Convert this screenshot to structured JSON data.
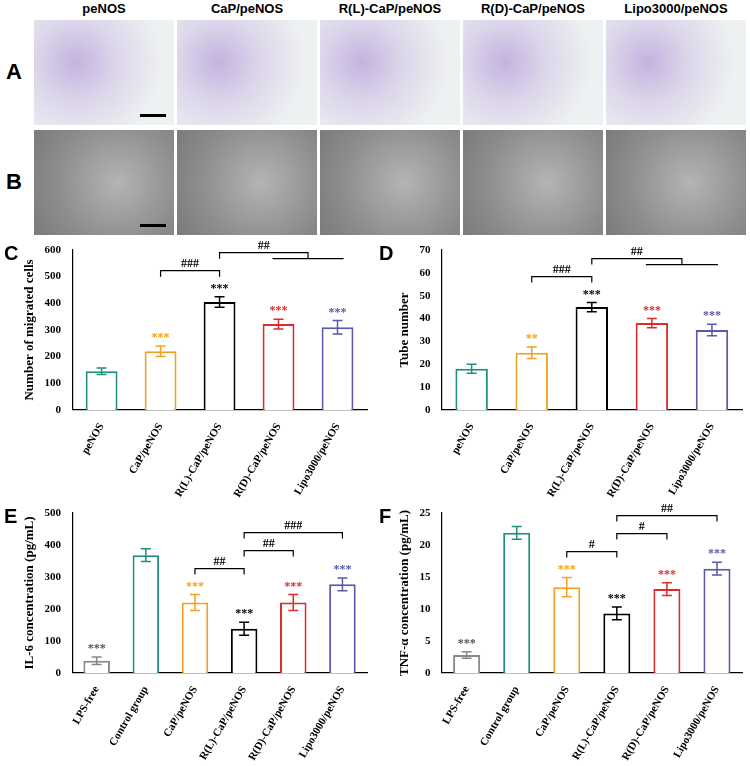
{
  "image_panels": {
    "columns": [
      "peNOS",
      "CaP/peNOS",
      "R(L)-CaP/peNOS",
      "R(D)-CaP/peNOS",
      "Lipo3000/peNOS"
    ],
    "rows": [
      "A",
      "B"
    ]
  },
  "chart_data": [
    {
      "panel": "C",
      "type": "bar",
      "y_label": "Number of migrated cells",
      "categories": [
        "peNOS",
        "CaP/peNOS",
        "R(L)-CaP/peNOS",
        "R(D)-CaP/peNOS",
        "Lipo3000/peNOS"
      ],
      "values": [
        145,
        220,
        405,
        322,
        310
      ],
      "errors": [
        12,
        20,
        20,
        18,
        25
      ],
      "colors": [
        "#1f8f80",
        "#f5a020",
        "#000000",
        "#e02a2a",
        "#5a5aa8"
      ],
      "significance": [
        null,
        "***",
        "***",
        "***",
        "***"
      ],
      "comparisons": [
        {
          "a": [
            1
          ],
          "b": [
            2
          ],
          "label": "###"
        },
        {
          "a": [
            2
          ],
          "b": [
            3,
            4
          ],
          "label": "##"
        }
      ],
      "ylim": [
        0,
        600
      ],
      "yticks": [
        0,
        100,
        200,
        300,
        400,
        500,
        600
      ],
      "grid": false
    },
    {
      "panel": "D",
      "type": "bar",
      "y_label": "Tube number",
      "categories": [
        "peNOS",
        "CaP/peNOS",
        "R(L)-CaP/peNOS",
        "R(D)-CaP/peNOS",
        "Lipo3000/peNOS"
      ],
      "values": [
        18,
        25,
        45,
        38,
        35
      ],
      "errors": [
        2,
        2.5,
        2,
        2,
        2.5
      ],
      "colors": [
        "#1f8f80",
        "#f5a020",
        "#000000",
        "#e02a2a",
        "#5a5aa8"
      ],
      "significance": [
        null,
        "**",
        "***",
        "***",
        "***"
      ],
      "comparisons": [
        {
          "a": [
            1
          ],
          "b": [
            2
          ],
          "label": "###"
        },
        {
          "a": [
            2
          ],
          "b": [
            3,
            4
          ],
          "label": "##"
        }
      ],
      "ylim": [
        0,
        70
      ],
      "yticks": [
        0,
        10,
        20,
        30,
        40,
        50,
        60,
        70
      ],
      "grid": false
    },
    {
      "panel": "E",
      "type": "bar",
      "y_label": "IL-6 concentration (pg/mL)",
      "categories": [
        "LPS-free",
        "Control group",
        "CaP/peNOS",
        "R(L)-CaP/peNOS",
        "R(D)-CaP/peNOS",
        "Lipo3000/peNOS"
      ],
      "values": [
        38,
        368,
        220,
        138,
        220,
        277
      ],
      "errors": [
        12,
        20,
        25,
        20,
        25,
        20
      ],
      "colors": [
        "#888888",
        "#1f8f80",
        "#f5a020",
        "#000000",
        "#e02a2a",
        "#5a5aa8"
      ],
      "significance": [
        "***",
        null,
        "***",
        "***",
        "***",
        "***"
      ],
      "comparisons": [
        {
          "a": [
            2
          ],
          "b": [
            3
          ],
          "label": "##"
        },
        {
          "a": [
            3
          ],
          "b": [
            4
          ],
          "label": "##"
        },
        {
          "a": [
            3
          ],
          "b": [
            5
          ],
          "label": "###"
        }
      ],
      "ylim": [
        0,
        500
      ],
      "yticks": [
        0,
        100,
        200,
        300,
        400,
        500
      ],
      "grid": false
    },
    {
      "panel": "F",
      "type": "bar",
      "y_label": "TNF-α concentration (pg/mL)",
      "categories": [
        "LPS-free",
        "Control group",
        "CaP/peNOS",
        "R(L)-CaP/peNOS",
        "R(D)-CaP/peNOS",
        "Lipo3000/peNOS"
      ],
      "values": [
        2.8,
        21.9,
        13.4,
        9.3,
        13.1,
        16.3
      ],
      "errors": [
        0.5,
        1,
        1.5,
        1,
        1,
        1
      ],
      "colors": [
        "#888888",
        "#1f8f80",
        "#f5a020",
        "#000000",
        "#e02a2a",
        "#5a5aa8"
      ],
      "significance": [
        "***",
        null,
        "***",
        "***",
        "***",
        "***"
      ],
      "comparisons": [
        {
          "a": [
            2
          ],
          "b": [
            3
          ],
          "label": "#"
        },
        {
          "a": [
            3
          ],
          "b": [
            4
          ],
          "label": "#"
        },
        {
          "a": [
            3
          ],
          "b": [
            5
          ],
          "label": "##"
        }
      ],
      "ylim": [
        0,
        25
      ],
      "yticks": [
        0,
        5,
        10,
        15,
        20,
        25
      ],
      "grid": false
    }
  ]
}
